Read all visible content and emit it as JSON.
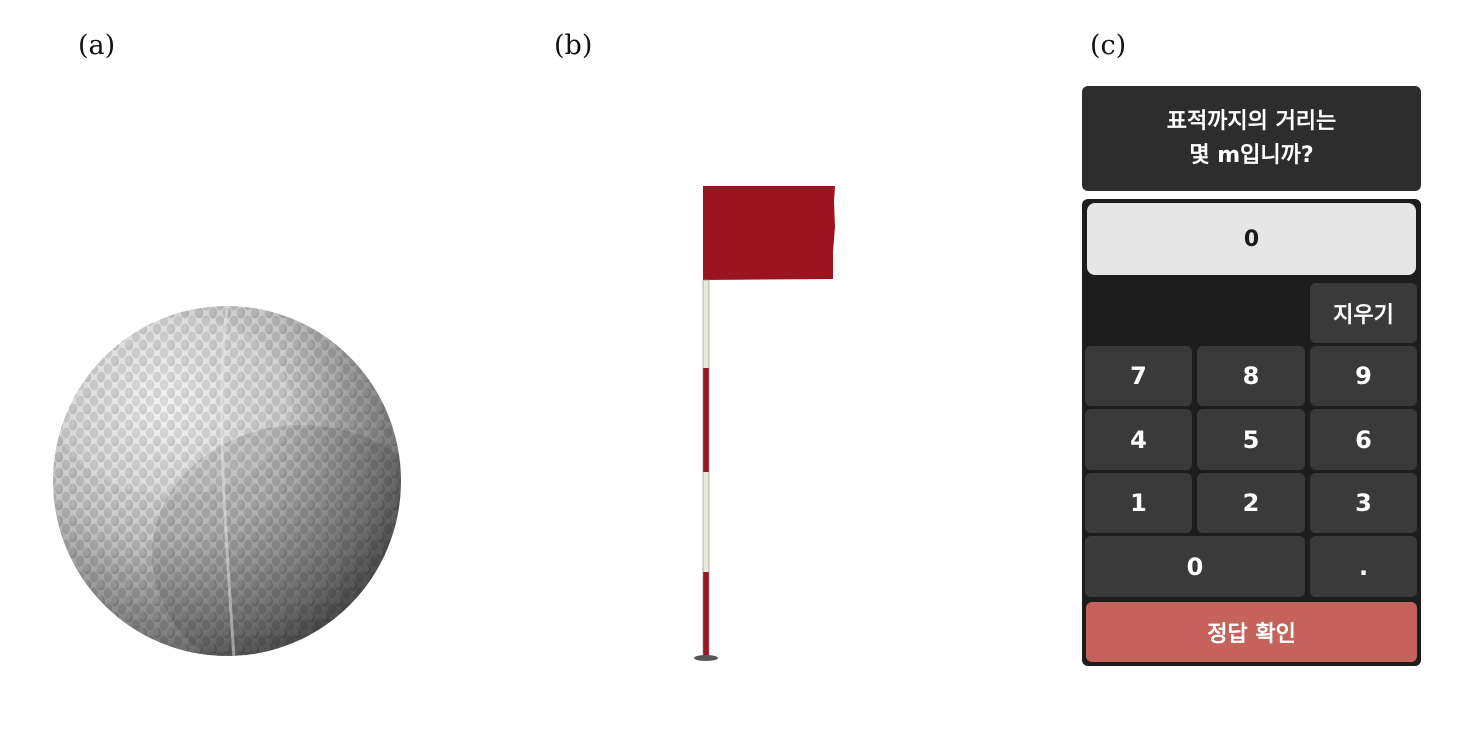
{
  "panel_labels": {
    "a": "(a)",
    "b": "(b)",
    "c": "(c)"
  },
  "ball": {
    "icon": "golf-ball-icon",
    "highlight_color": "#f2f2f2",
    "shadow_color": "#3a3a3a"
  },
  "flag": {
    "icon": "golf-flag-icon",
    "flag_color": "#9b1520",
    "pole_stripe_colors": [
      "#e8ebdc",
      "#9b1520"
    ]
  },
  "keypad": {
    "question_line1": "표적까지의 거리는",
    "question_line2": "몇 m입니까?",
    "display_value": "0",
    "erase_label": "지우기",
    "keys": {
      "k7": "7",
      "k8": "8",
      "k9": "9",
      "k4": "4",
      "k5": "5",
      "k6": "6",
      "k1": "1",
      "k2": "2",
      "k3": "3",
      "k0": "0",
      "kdot": "."
    },
    "confirm_label": "정답 확인",
    "colors": {
      "question_bg": "#2d2d2d",
      "key_bg": "#3a3a3a",
      "confirm_bg": "#c4625b",
      "display_bg": "#e6e6e6"
    }
  }
}
